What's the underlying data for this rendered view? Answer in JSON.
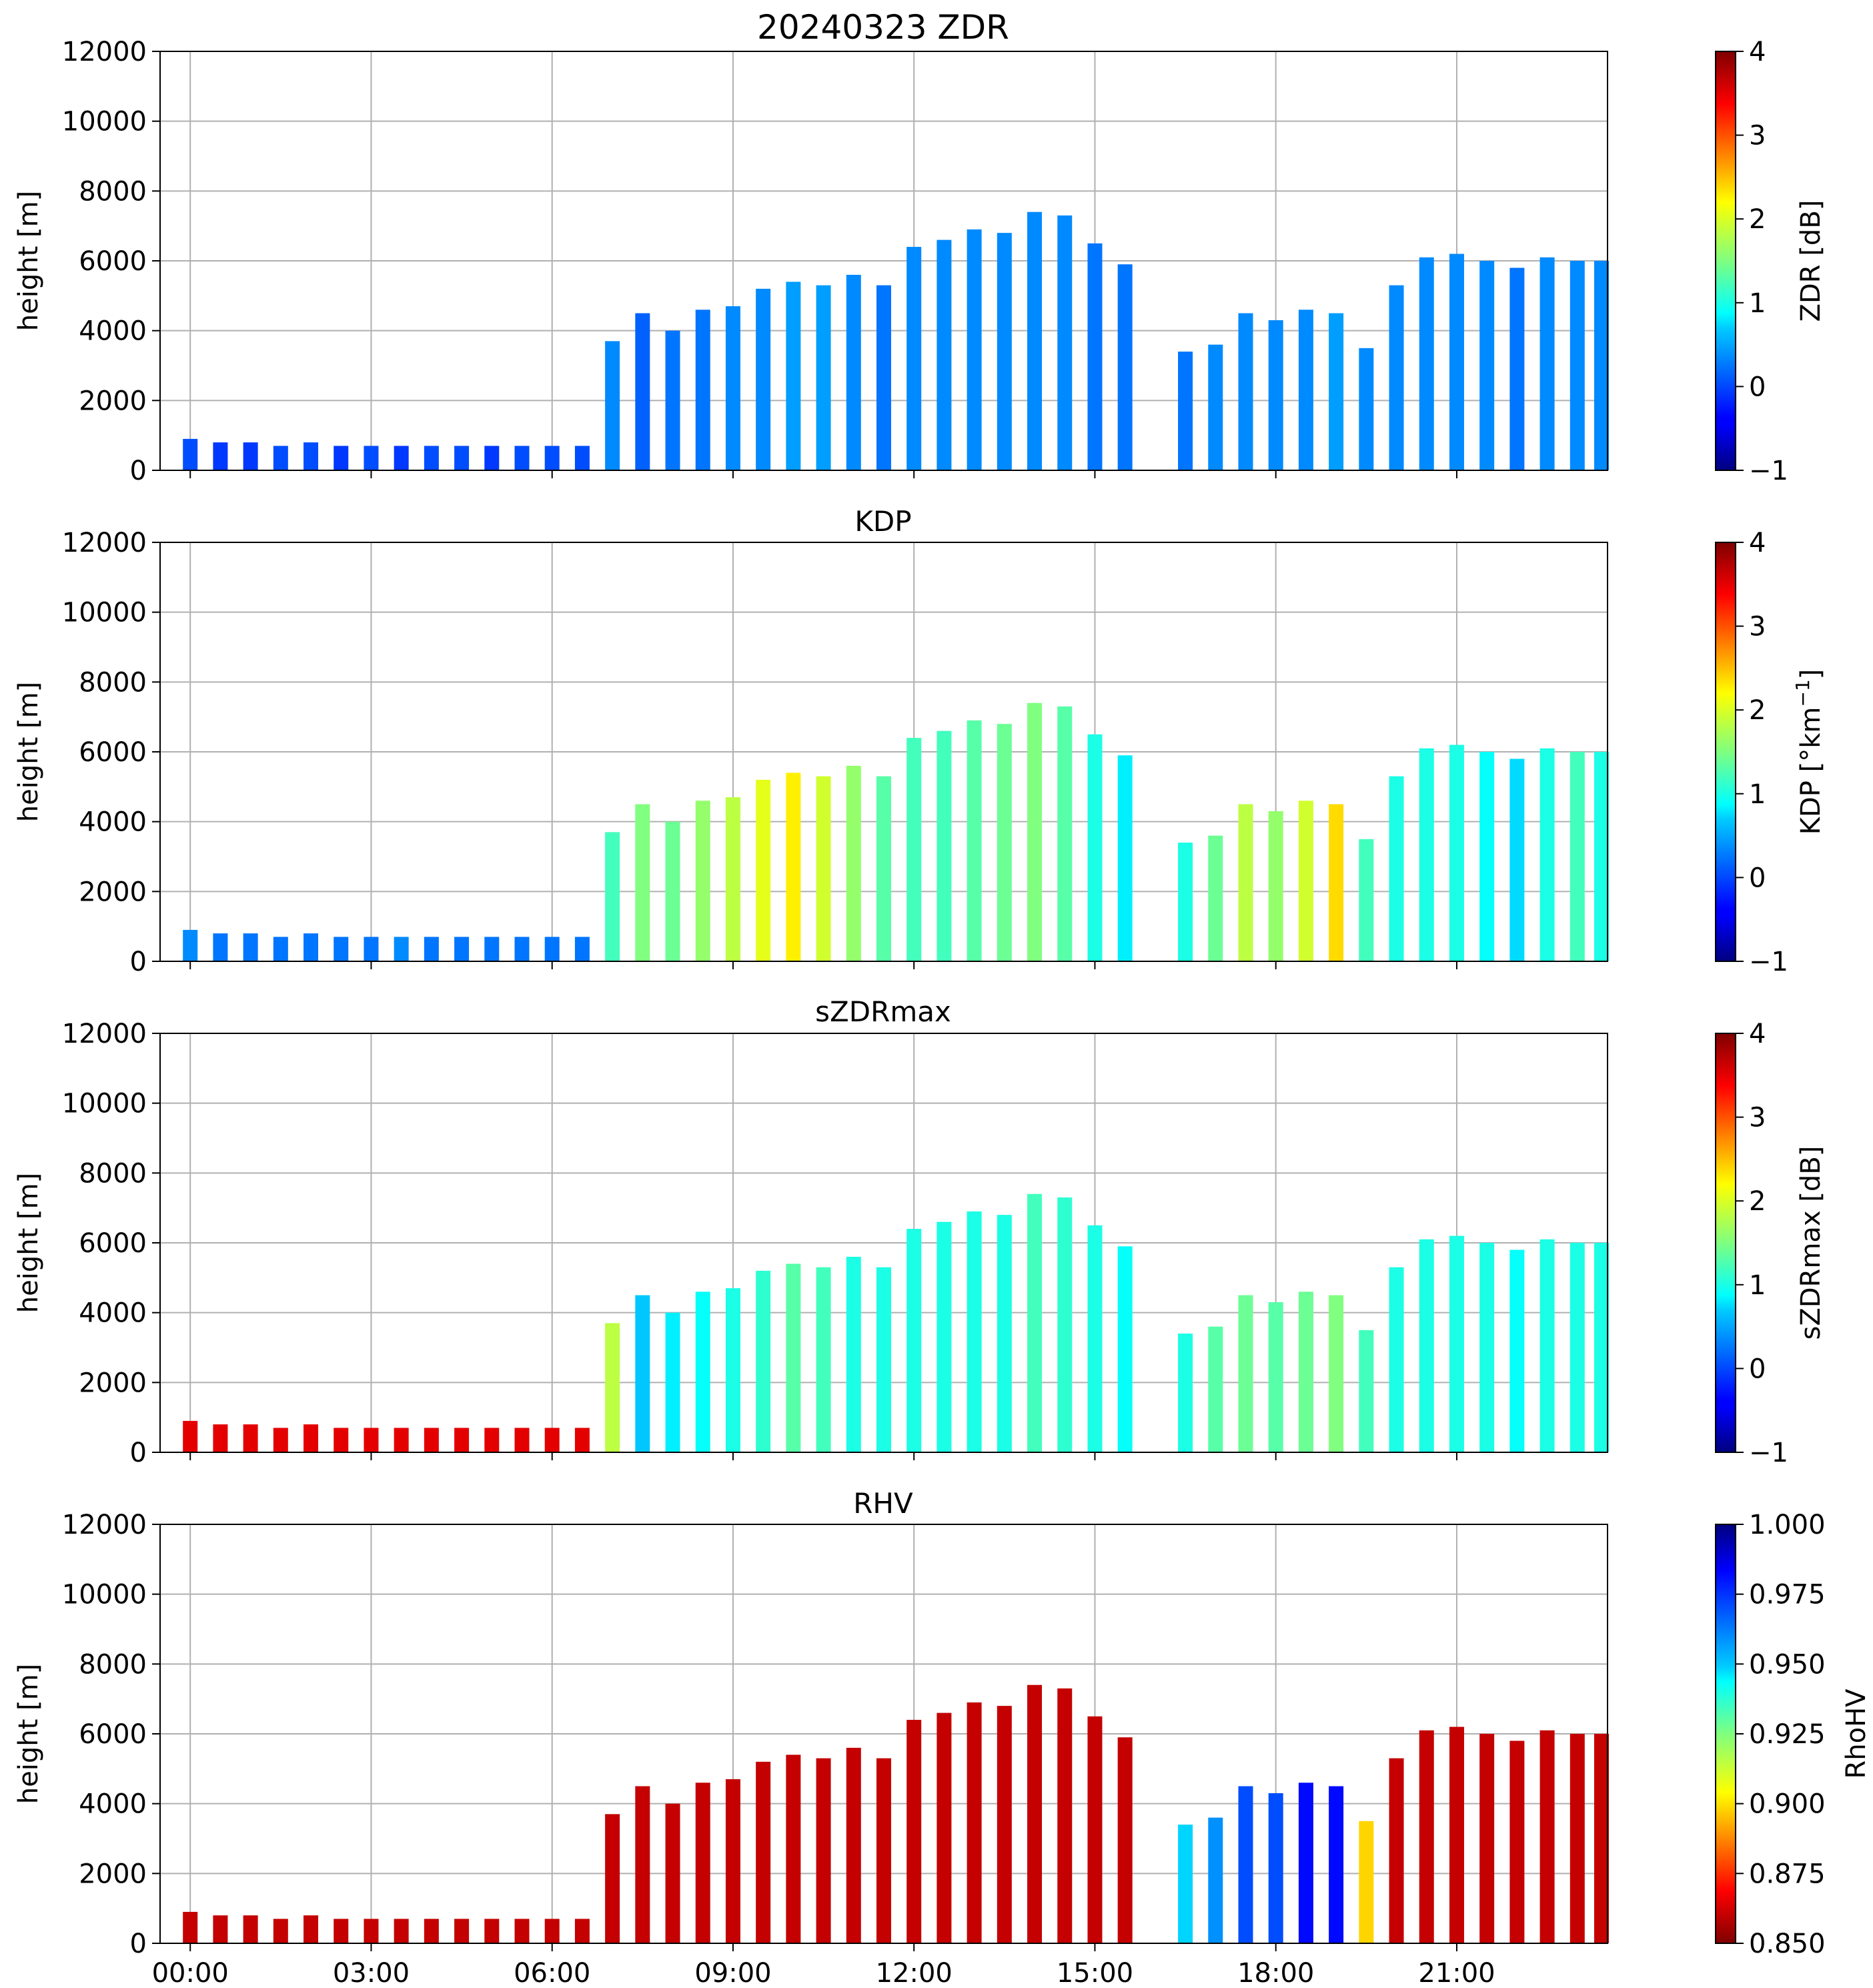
{
  "chart_data": {
    "type": "heatmap",
    "shared_x": {
      "range_hours": [
        -0.5,
        23.5
      ],
      "ticks": [
        0,
        3,
        6,
        9,
        12,
        15,
        18,
        21
      ],
      "tick_labels": [
        "00:00",
        "03:00",
        "06:00",
        "09:00",
        "12:00",
        "15:00",
        "18:00",
        "21:00"
      ]
    },
    "panels": [
      {
        "title": "20240323 ZDR",
        "ylabel": "height [m]",
        "ylim": [
          0,
          12000
        ],
        "yticks": [
          0,
          2000,
          4000,
          6000,
          8000,
          10000,
          12000
        ],
        "ytick_labels": [
          "0",
          "2000",
          "4000",
          "6000",
          "8000",
          "10000",
          "12000"
        ],
        "colorbar": {
          "label": "ZDR [dB]",
          "cmap": "jet",
          "range": [
            -1,
            4
          ],
          "ticks": [
            -1,
            0,
            1,
            2,
            3,
            4
          ],
          "tick_labels": [
            "−1",
            "0",
            "1",
            "2",
            "3",
            "4"
          ]
        },
        "field": "zdr"
      },
      {
        "title": "KDP",
        "ylabel": "height [m]",
        "ylim": [
          0,
          12000
        ],
        "yticks": [
          0,
          2000,
          4000,
          6000,
          8000,
          10000,
          12000
        ],
        "ytick_labels": [
          "0",
          "2000",
          "4000",
          "6000",
          "8000",
          "10000",
          "12000"
        ],
        "colorbar": {
          "label": "KDP [°km",
          "label_sup": "−1",
          "label_tail": "]",
          "cmap": "jet",
          "range": [
            -1,
            4
          ],
          "ticks": [
            -1,
            0,
            1,
            2,
            3,
            4
          ],
          "tick_labels": [
            "−1",
            "0",
            "1",
            "2",
            "3",
            "4"
          ]
        },
        "field": "kdp"
      },
      {
        "title": "sZDRmax",
        "ylabel": "height [m]",
        "ylim": [
          0,
          12000
        ],
        "yticks": [
          0,
          2000,
          4000,
          6000,
          8000,
          10000,
          12000
        ],
        "ytick_labels": [
          "0",
          "2000",
          "4000",
          "6000",
          "8000",
          "10000",
          "12000"
        ],
        "colorbar": {
          "label": "sZDRmax [dB]",
          "cmap": "jet",
          "range": [
            -1,
            4
          ],
          "ticks": [
            -1,
            0,
            1,
            2,
            3,
            4
          ],
          "tick_labels": [
            "−1",
            "0",
            "1",
            "2",
            "3",
            "4"
          ]
        },
        "field": "szdr"
      },
      {
        "title": "RHV",
        "ylabel": "height [m]",
        "ylim": [
          0,
          12000
        ],
        "yticks": [
          0,
          2000,
          4000,
          6000,
          8000,
          10000,
          12000
        ],
        "ytick_labels": [
          "0",
          "2000",
          "4000",
          "6000",
          "8000",
          "10000",
          "12000"
        ],
        "colorbar": {
          "label": "RhoHV",
          "cmap": "jet_r",
          "range": [
            0.85,
            1.0
          ],
          "ticks": [
            0.85,
            0.875,
            0.9,
            0.925,
            0.95,
            0.975,
            1.0
          ],
          "tick_labels": [
            "0.850",
            "0.875",
            "0.900",
            "0.925",
            "0.950",
            "0.975",
            "1.000"
          ]
        },
        "field": "rhv"
      }
    ],
    "scans": [
      {
        "t": 0.0,
        "top": 900,
        "z": 0.0,
        "k": 0.3,
        "s": 3.5,
        "r": 0.86
      },
      {
        "t": 0.5,
        "top": 800,
        "z": -0.1,
        "k": 0.2,
        "s": 3.5,
        "r": 0.86
      },
      {
        "t": 1.0,
        "top": 800,
        "z": -0.1,
        "k": 0.2,
        "s": 3.5,
        "r": 0.86
      },
      {
        "t": 1.5,
        "top": 700,
        "z": 0.0,
        "k": 0.2,
        "s": 3.5,
        "r": 0.86
      },
      {
        "t": 2.0,
        "top": 800,
        "z": 0.0,
        "k": 0.2,
        "s": 3.5,
        "r": 0.86
      },
      {
        "t": 2.5,
        "top": 700,
        "z": -0.1,
        "k": 0.2,
        "s": 3.5,
        "r": 0.86
      },
      {
        "t": 3.0,
        "top": 700,
        "z": 0.0,
        "k": 0.2,
        "s": 3.5,
        "r": 0.86
      },
      {
        "t": 3.5,
        "top": 700,
        "z": -0.1,
        "k": 0.3,
        "s": 3.5,
        "r": 0.86
      },
      {
        "t": 4.0,
        "top": 700,
        "z": 0.0,
        "k": 0.2,
        "s": 3.5,
        "r": 0.86
      },
      {
        "t": 4.5,
        "top": 700,
        "z": 0.0,
        "k": 0.2,
        "s": 3.5,
        "r": 0.86
      },
      {
        "t": 5.0,
        "top": 700,
        "z": -0.1,
        "k": 0.2,
        "s": 3.5,
        "r": 0.86
      },
      {
        "t": 5.5,
        "top": 700,
        "z": 0.0,
        "k": 0.2,
        "s": 3.5,
        "r": 0.86
      },
      {
        "t": 6.0,
        "top": 700,
        "z": 0.0,
        "k": 0.2,
        "s": 3.5,
        "r": 0.86
      },
      {
        "t": 6.5,
        "top": 700,
        "z": 0.0,
        "k": 0.2,
        "s": 3.5,
        "r": 0.86
      },
      {
        "t": 7.0,
        "top": 3700,
        "z": 0.3,
        "k": 1.2,
        "s": 1.8,
        "r": 0.86
      },
      {
        "t": 7.5,
        "top": 4500,
        "z": 0.1,
        "k": 1.5,
        "s": 0.6,
        "r": 0.86
      },
      {
        "t": 8.0,
        "top": 4000,
        "z": 0.2,
        "k": 1.4,
        "s": 0.8,
        "r": 0.86
      },
      {
        "t": 8.5,
        "top": 4600,
        "z": 0.2,
        "k": 1.6,
        "s": 0.9,
        "r": 0.86
      },
      {
        "t": 9.0,
        "top": 4700,
        "z": 0.3,
        "k": 1.8,
        "s": 1.0,
        "r": 0.86
      },
      {
        "t": 9.5,
        "top": 5200,
        "z": 0.3,
        "k": 2.0,
        "s": 1.1,
        "r": 0.86
      },
      {
        "t": 10.0,
        "top": 5400,
        "z": 0.4,
        "k": 2.2,
        "s": 1.3,
        "r": 0.86
      },
      {
        "t": 10.5,
        "top": 5300,
        "z": 0.4,
        "k": 1.9,
        "s": 1.2,
        "r": 0.86
      },
      {
        "t": 11.0,
        "top": 5600,
        "z": 0.3,
        "k": 1.6,
        "s": 1.0,
        "r": 0.86
      },
      {
        "t": 11.5,
        "top": 5300,
        "z": 0.2,
        "k": 1.3,
        "s": 1.0,
        "r": 0.86
      },
      {
        "t": 12.0,
        "top": 6400,
        "z": 0.3,
        "k": 1.2,
        "s": 1.0,
        "r": 0.86
      },
      {
        "t": 12.5,
        "top": 6600,
        "z": 0.3,
        "k": 1.2,
        "s": 1.0,
        "r": 0.86
      },
      {
        "t": 13.0,
        "top": 6900,
        "z": 0.3,
        "k": 1.3,
        "s": 1.0,
        "r": 0.86
      },
      {
        "t": 13.5,
        "top": 6800,
        "z": 0.3,
        "k": 1.4,
        "s": 1.0,
        "r": 0.86
      },
      {
        "t": 14.0,
        "top": 7400,
        "z": 0.3,
        "k": 1.5,
        "s": 1.2,
        "r": 0.86
      },
      {
        "t": 14.5,
        "top": 7300,
        "z": 0.3,
        "k": 1.3,
        "s": 1.1,
        "r": 0.86
      },
      {
        "t": 15.0,
        "top": 6500,
        "z": 0.2,
        "k": 1.0,
        "s": 1.0,
        "r": 0.86
      },
      {
        "t": 15.5,
        "top": 5900,
        "z": 0.2,
        "k": 0.8,
        "s": 0.9,
        "r": 0.86
      },
      {
        "t": 16.5,
        "top": 3400,
        "z": 0.2,
        "k": 1.0,
        "s": 1.0,
        "r": 0.95
      },
      {
        "t": 17.0,
        "top": 3600,
        "z": 0.3,
        "k": 1.4,
        "s": 1.3,
        "r": 0.96
      },
      {
        "t": 17.5,
        "top": 4500,
        "z": 0.3,
        "k": 1.8,
        "s": 1.4,
        "r": 0.97
      },
      {
        "t": 18.0,
        "top": 4300,
        "z": 0.3,
        "k": 1.6,
        "s": 1.3,
        "r": 0.97
      },
      {
        "t": 18.5,
        "top": 4600,
        "z": 0.3,
        "k": 1.9,
        "s": 1.4,
        "r": 0.98
      },
      {
        "t": 19.0,
        "top": 4500,
        "z": 0.4,
        "k": 2.3,
        "s": 1.5,
        "r": 0.98
      },
      {
        "t": 19.5,
        "top": 3500,
        "z": 0.3,
        "k": 1.2,
        "s": 1.2,
        "r": 0.9
      },
      {
        "t": 20.0,
        "top": 5300,
        "z": 0.3,
        "k": 1.0,
        "s": 1.0,
        "r": 0.86
      },
      {
        "t": 20.5,
        "top": 6100,
        "z": 0.3,
        "k": 1.0,
        "s": 1.0,
        "r": 0.86
      },
      {
        "t": 21.0,
        "top": 6200,
        "z": 0.3,
        "k": 1.0,
        "s": 1.0,
        "r": 0.86
      },
      {
        "t": 21.5,
        "top": 6000,
        "z": 0.3,
        "k": 0.9,
        "s": 1.0,
        "r": 0.86
      },
      {
        "t": 22.0,
        "top": 5800,
        "z": 0.2,
        "k": 0.7,
        "s": 0.9,
        "r": 0.86
      },
      {
        "t": 22.5,
        "top": 6100,
        "z": 0.3,
        "k": 1.0,
        "s": 1.0,
        "r": 0.86
      },
      {
        "t": 23.0,
        "top": 6000,
        "z": 0.3,
        "k": 1.2,
        "s": 1.0,
        "r": 0.86
      },
      {
        "t": 23.4,
        "top": 6000,
        "z": 0.3,
        "k": 1.0,
        "s": 1.0,
        "r": 0.86
      }
    ]
  }
}
